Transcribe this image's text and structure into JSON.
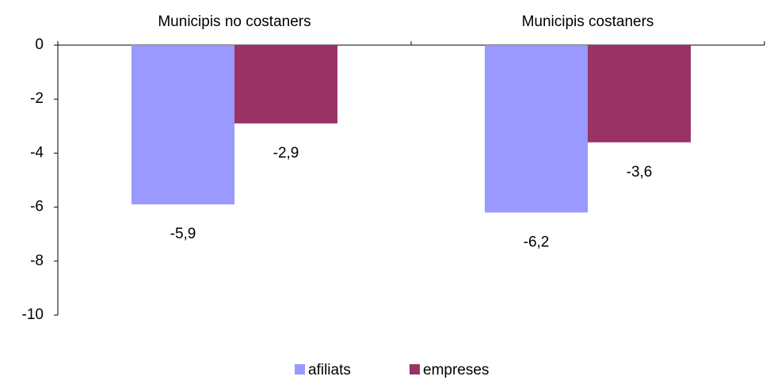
{
  "chart_data": {
    "type": "bar",
    "categories": [
      "Municipis no costaners",
      "Municipis costaners"
    ],
    "series": [
      {
        "name": "afiliats",
        "color": "#9999ff",
        "values": [
          -5.9,
          -6.2
        ],
        "value_labels": [
          "-5,9",
          "-6,2"
        ]
      },
      {
        "name": "empreses",
        "color": "#993366",
        "values": [
          -2.9,
          -3.6
        ],
        "value_labels": [
          "-2,9",
          "-3,6"
        ]
      }
    ],
    "ylim": [
      -10,
      0
    ],
    "yticks": [
      0,
      -2,
      -4,
      -6,
      -8,
      -10
    ],
    "grid": false,
    "legend": "bottom"
  }
}
